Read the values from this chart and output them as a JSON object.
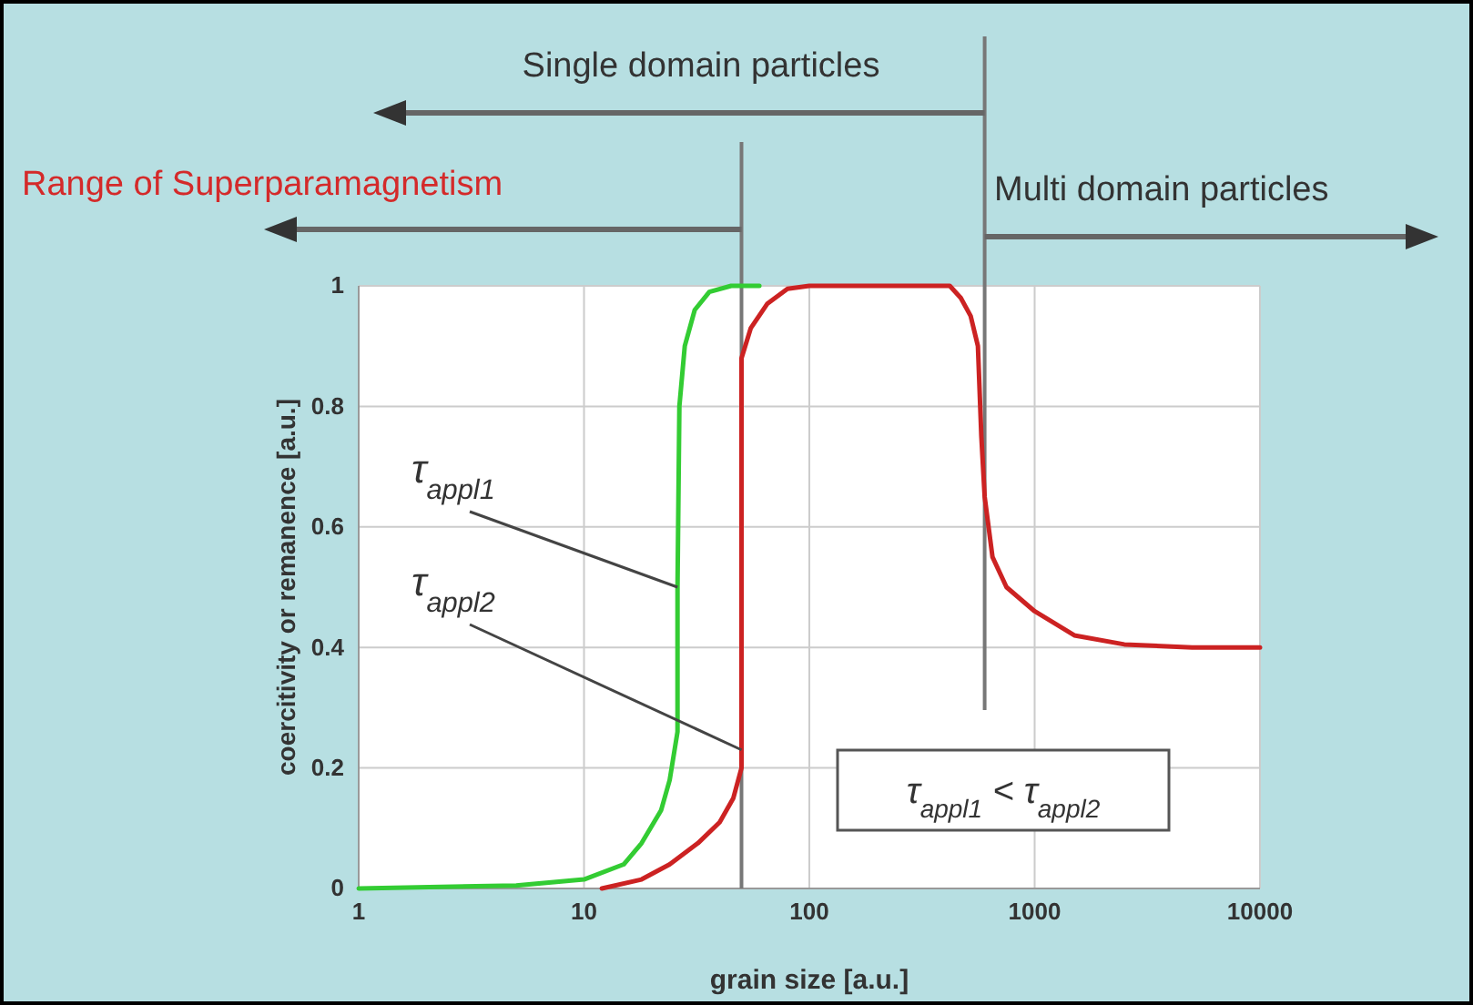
{
  "chart_data": {
    "type": "line",
    "xlabel": "grain size [a.u.]",
    "ylabel": "coercitivity or remanence [a.u.]",
    "log": "x",
    "xlim": [
      1,
      10000
    ],
    "xticks": [
      1,
      10,
      100,
      1000,
      10000
    ],
    "ylim": [
      0,
      1
    ],
    "yticks": [
      0,
      0.2,
      0.4,
      0.6,
      0.8,
      1
    ],
    "grid": true,
    "series": [
      {
        "color": "#33cc33",
        "x": [
          1,
          5,
          10,
          15,
          18,
          22,
          24,
          26,
          26,
          26.5,
          28,
          31,
          36,
          45,
          60
        ],
        "values": [
          0,
          0.005,
          0.015,
          0.04,
          0.075,
          0.13,
          0.18,
          0.26,
          0.5,
          0.8,
          0.9,
          0.96,
          0.99,
          1,
          1
        ]
      },
      {
        "color": "#cc2222",
        "x": [
          12,
          18,
          24,
          32,
          40,
          46,
          50,
          50,
          50,
          55,
          65,
          80,
          100,
          420,
          470,
          520,
          560,
          580,
          600,
          650,
          750,
          1000,
          1500,
          2500,
          5000,
          10000
        ],
        "values": [
          0,
          0.015,
          0.04,
          0.075,
          0.11,
          0.15,
          0.2,
          0.5,
          0.88,
          0.93,
          0.97,
          0.995,
          1,
          1,
          0.98,
          0.95,
          0.9,
          0.75,
          0.65,
          0.55,
          0.5,
          0.46,
          0.42,
          0.405,
          0.4,
          0.4
        ]
      }
    ],
    "ref_lines": [
      {
        "axis": "x",
        "value": 50,
        "color": "#777777"
      },
      {
        "axis": "x",
        "value": 600,
        "color": "#777777"
      }
    ],
    "annotations": [
      "Single domain particles",
      "Range of Superparamagnetism",
      "Multi domain particles",
      {
        "text": "τ$_{appl1}$",
        "x": 26,
        "y": 0.5
      },
      {
        "text": "τ$_{appl2}$",
        "x": 50,
        "y": 0.23
      },
      "τ$_{appl1}$ < τ$_{appl2}$"
    ]
  }
}
